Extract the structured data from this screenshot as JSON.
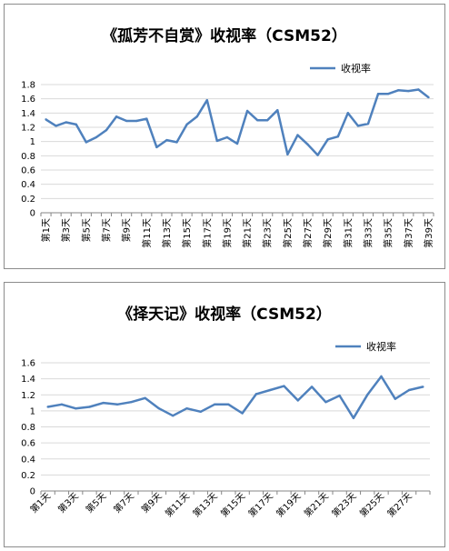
{
  "chart_data": [
    {
      "type": "line",
      "title": "《孤芳不自赏》收视率（CSM52）",
      "legend": "top-right",
      "grid": true,
      "ylim": [
        0,
        1.8
      ],
      "yticks": [
        "0",
        "0.2",
        "0.4",
        "0.6",
        "0.8",
        "1",
        "1.2",
        "1.4",
        "1.6",
        "1.8"
      ],
      "xtick_labels": [
        "第1天",
        "第3天",
        "第5天",
        "第7天",
        "第9天",
        "第11天",
        "第13天",
        "第15天",
        "第17天",
        "第19天",
        "第21天",
        "第23天",
        "第25天",
        "第27天",
        "第29天",
        "第31天",
        "第33天",
        "第35天",
        "第37天",
        "第39天"
      ],
      "categories": [
        "第1天",
        "第2天",
        "第3天",
        "第4天",
        "第5天",
        "第6天",
        "第7天",
        "第8天",
        "第9天",
        "第10天",
        "第11天",
        "第12天",
        "第13天",
        "第14天",
        "第15天",
        "第16天",
        "第17天",
        "第18天",
        "第19天",
        "第20天",
        "第21天",
        "第22天",
        "第23天",
        "第24天",
        "第25天",
        "第26天",
        "第27天",
        "第28天",
        "第29天",
        "第30天",
        "第31天",
        "第32天",
        "第33天",
        "第34天",
        "第35天",
        "第36天",
        "第37天",
        "第38天",
        "第39天"
      ],
      "series": [
        {
          "name": "收视率",
          "color": "#4f81bd",
          "values": [
            1.31,
            1.22,
            1.27,
            1.24,
            0.99,
            1.06,
            1.16,
            1.35,
            1.29,
            1.29,
            1.32,
            0.92,
            1.02,
            0.99,
            1.24,
            1.35,
            1.58,
            1.01,
            1.06,
            0.97,
            1.43,
            1.3,
            1.3,
            1.44,
            0.82,
            1.09,
            0.96,
            0.81,
            1.03,
            1.07,
            1.4,
            1.22,
            1.25,
            1.67,
            1.67,
            1.72,
            1.71,
            1.73,
            1.62
          ]
        }
      ]
    },
    {
      "type": "line",
      "title": "《择天记》收视率（CSM52）",
      "legend": "top-right",
      "grid": true,
      "ylim": [
        0,
        1.6
      ],
      "yticks": [
        "0",
        "0.2",
        "0.4",
        "0.6",
        "0.8",
        "1",
        "1.2",
        "1.4",
        "1.6"
      ],
      "xtick_labels": [
        "第1天",
        "第3天",
        "第5天",
        "第7天",
        "第9天",
        "第11天",
        "第13天",
        "第15天",
        "第17天",
        "第19天",
        "第21天",
        "第23天",
        "第25天",
        "第27天"
      ],
      "categories": [
        "第1天",
        "第2天",
        "第3天",
        "第4天",
        "第5天",
        "第6天",
        "第7天",
        "第8天",
        "第9天",
        "第10天",
        "第11天",
        "第12天",
        "第13天",
        "第14天",
        "第15天",
        "第16天",
        "第17天",
        "第18天",
        "第19天",
        "第20天",
        "第21天",
        "第22天",
        "第23天",
        "第24天",
        "第25天",
        "第26天",
        "第27天",
        "第28天"
      ],
      "series": [
        {
          "name": "收视率",
          "color": "#4f81bd",
          "values": [
            1.05,
            1.08,
            1.03,
            1.05,
            1.1,
            1.08,
            1.11,
            1.16,
            1.03,
            0.94,
            1.03,
            0.99,
            1.08,
            1.08,
            0.97,
            1.21,
            1.26,
            1.31,
            1.13,
            1.3,
            1.11,
            1.19,
            0.91,
            1.2,
            1.43,
            1.15,
            1.26,
            1.3
          ]
        }
      ]
    }
  ]
}
